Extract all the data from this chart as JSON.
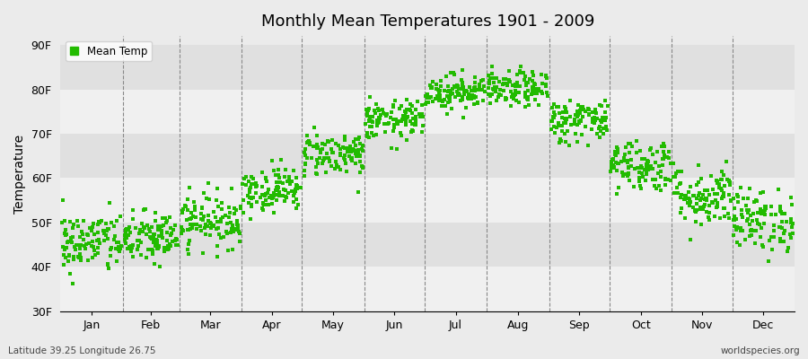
{
  "title": "Monthly Mean Temperatures 1901 - 2009",
  "ylabel": "Temperature",
  "xlabel_bottom_left": "Latitude 39.25 Longitude 26.75",
  "xlabel_bottom_right": "worldspecies.org",
  "legend_label": "Mean Temp",
  "marker_color": "#22bb00",
  "background_color": "#ebebeb",
  "plot_bg_color": "#ebebeb",
  "yticks": [
    30,
    40,
    50,
    60,
    70,
    80,
    90
  ],
  "ytick_labels": [
    "30F",
    "40F",
    "50F",
    "60F",
    "70F",
    "80F",
    "90F"
  ],
  "ylim": [
    30,
    92
  ],
  "months": [
    "Jan",
    "Feb",
    "Mar",
    "Apr",
    "May",
    "Jun",
    "Jul",
    "Aug",
    "Sep",
    "Oct",
    "Nov",
    "Dec"
  ],
  "month_days": [
    31,
    28,
    31,
    30,
    31,
    30,
    31,
    31,
    30,
    31,
    30,
    31
  ],
  "month_means_F": [
    45.5,
    46.5,
    50.5,
    57.5,
    65.5,
    73.0,
    79.5,
    80.0,
    73.0,
    63.0,
    56.0,
    50.5
  ],
  "month_stds_F": [
    3.5,
    3.0,
    3.0,
    2.5,
    2.5,
    2.2,
    2.0,
    2.0,
    2.5,
    3.0,
    3.5,
    3.5
  ],
  "n_years": 109,
  "seed": 42,
  "stripe_colors": [
    "#f0f0f0",
    "#e0e0e0"
  ],
  "dashed_line_color": "#888888",
  "grid_color": "#ffffff"
}
